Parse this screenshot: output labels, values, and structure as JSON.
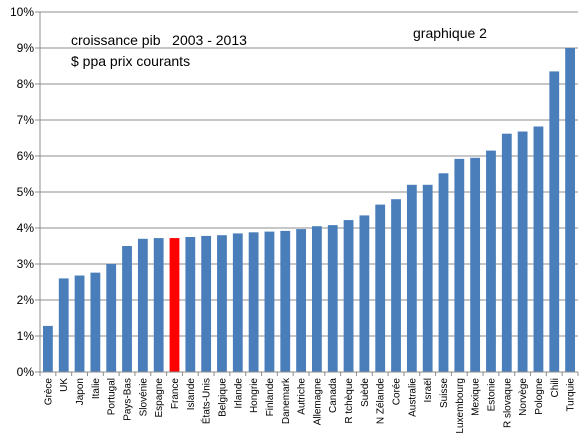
{
  "chart_data": {
    "type": "bar",
    "annotations": {
      "line1": "croissance pib   2003 - 2013",
      "line2": "$ ppa prix courants",
      "right": "graphique 2"
    },
    "categories": [
      "Grèce",
      "UK",
      "Japon",
      "Italie",
      "Portugal",
      "Pays-Bas",
      "Slovénie",
      "Espagne",
      "France",
      "Islande",
      "États-Unis",
      "Belgique",
      "Irlande",
      "Hongrie",
      "Finlande",
      "Danemark",
      "Autriche",
      "Allemagne",
      "Canada",
      "R tchèque",
      "Suède",
      "N Zélande",
      "Corée",
      "Australie",
      "Israël",
      "Suisse",
      "Luxembourg",
      "Mexique",
      "Estonie",
      "R slovaque",
      "Norvège",
      "Pologne",
      "Chili",
      "Turquie"
    ],
    "values": [
      1.28,
      2.6,
      2.68,
      2.76,
      3.0,
      3.5,
      3.7,
      3.72,
      3.72,
      3.75,
      3.78,
      3.8,
      3.85,
      3.88,
      3.9,
      3.92,
      3.97,
      4.05,
      4.08,
      4.22,
      4.35,
      4.65,
      4.8,
      5.2,
      5.2,
      5.52,
      5.92,
      5.95,
      6.15,
      6.62,
      6.68,
      6.82,
      8.35,
      9.0
    ],
    "highlight": "France",
    "ylim": [
      0,
      10
    ],
    "y_ticks": [
      "0%",
      "1%",
      "2%",
      "3%",
      "4%",
      "5%",
      "6%",
      "7%",
      "8%",
      "9%",
      "10%"
    ],
    "grid": true,
    "colors": {
      "bar": "#4a7ebb",
      "highlight": "#ff0000",
      "grid": "#8c8c8c",
      "axis": "#8c8c8c"
    }
  }
}
